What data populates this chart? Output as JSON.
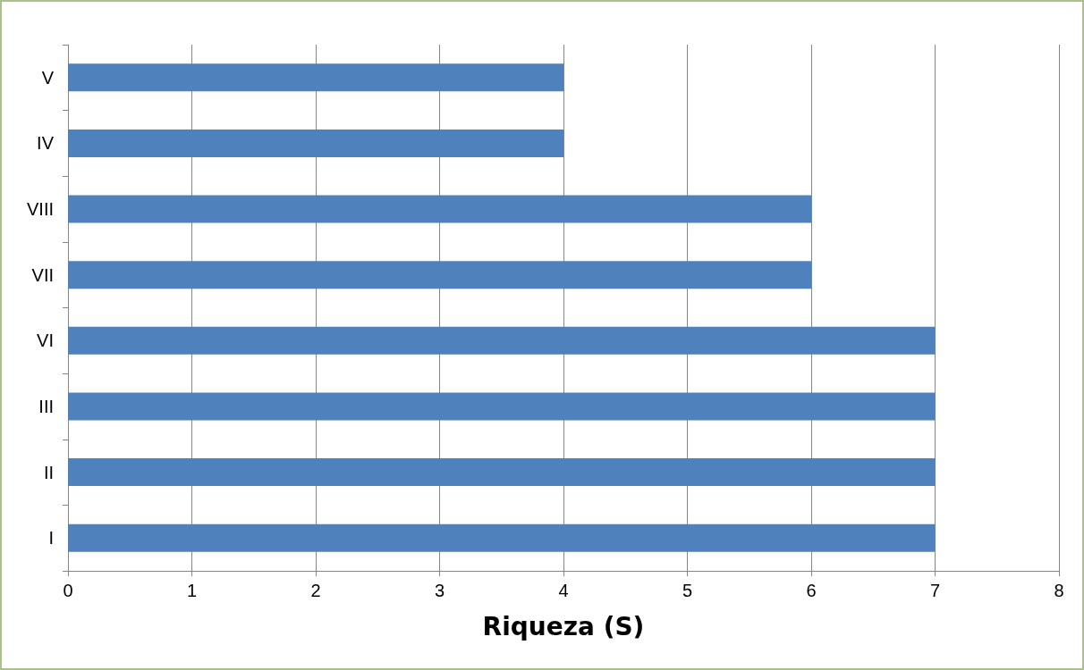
{
  "chart_data": {
    "type": "bar",
    "orientation": "horizontal",
    "xlabel": "Riqueza (S)",
    "categories": [
      "V",
      "IV",
      "VIII",
      "VII",
      "VI",
      "III",
      "II",
      "I"
    ],
    "values": [
      4,
      4,
      6,
      6,
      7,
      7,
      7,
      7
    ],
    "color": "#4f81bd",
    "xlim": [
      0,
      8
    ],
    "xticks": [
      0,
      1,
      2,
      3,
      4,
      5,
      6,
      7,
      8
    ],
    "grid": "x"
  }
}
